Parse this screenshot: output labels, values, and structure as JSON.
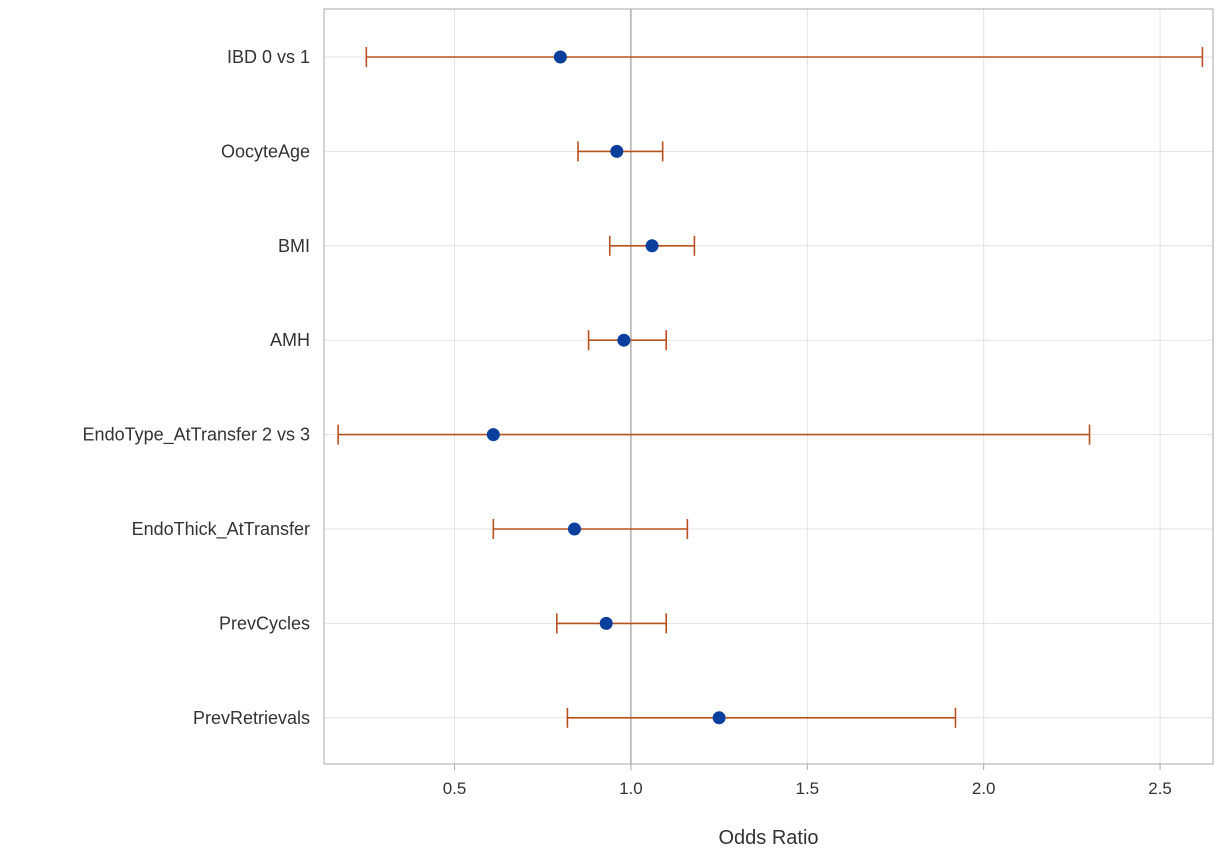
{
  "chart_data": {
    "type": "scatter",
    "subtype": "forest-plot",
    "title": "",
    "xlabel": "Odds Ratio",
    "ylabel": "",
    "xlim": [
      0.13,
      2.65
    ],
    "xticks": [
      0.5,
      1.0,
      1.5,
      2.0,
      2.5
    ],
    "xtick_labels": [
      "0.5",
      "1.0",
      "1.5",
      "2.0",
      "2.5"
    ],
    "reference_line": 1.0,
    "grid": true,
    "legend": "none",
    "colors": {
      "point": "#0b3f9e",
      "interval": "#b8501f",
      "grid": "#e3e3e3",
      "reference": "#9a9a9a",
      "frame": "#a8a8a8"
    },
    "categories": [
      "IBD 0 vs 1",
      "OocyteAge",
      "BMI",
      "AMH",
      "EndoType_AtTransfer 2 vs 3",
      "EndoThick_AtTransfer",
      "PrevCycles",
      "PrevRetrievals"
    ],
    "series": [
      {
        "estimate": [
          0.8,
          0.96,
          1.06,
          0.98,
          0.61,
          0.84,
          0.93,
          1.25
        ],
        "lower": [
          0.25,
          0.85,
          0.94,
          0.88,
          0.17,
          0.61,
          0.79,
          0.82
        ],
        "upper": [
          2.62,
          1.09,
          1.18,
          1.1,
          2.3,
          1.16,
          1.1,
          1.92
        ]
      }
    ]
  }
}
